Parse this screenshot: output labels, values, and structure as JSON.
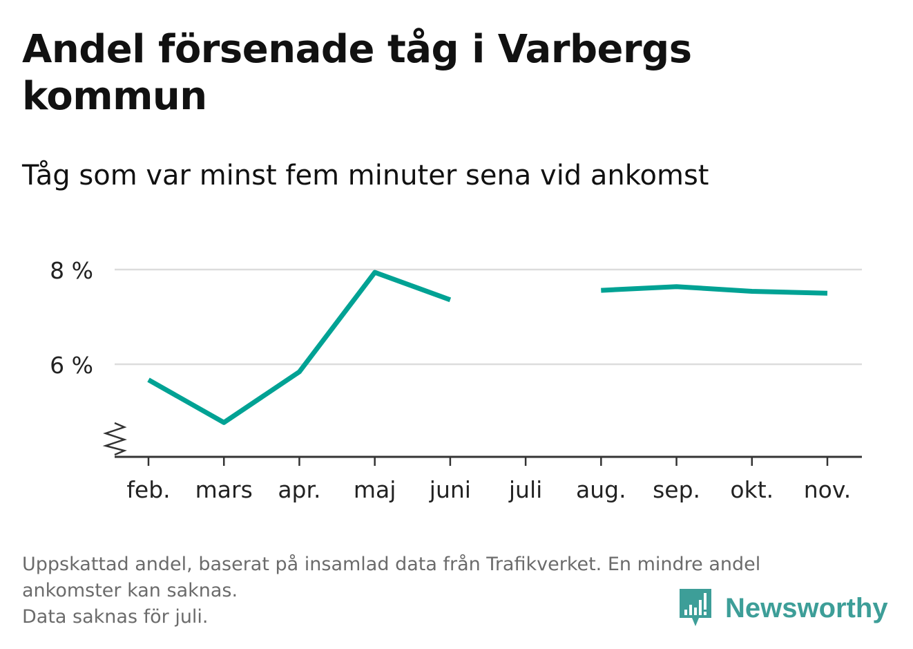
{
  "header": {
    "title": "Andel försenade tåg i Varbergs kommun",
    "subtitle": "Tåg som var minst fem minuter sena vid ankomst"
  },
  "footer": {
    "note_line1": "Uppskattad andel, baserat på insamlad data från Trafikverket. En mindre andel",
    "note_line2": "ankomster kan saknas.",
    "note_line3": "Data saknas för juli."
  },
  "logo": {
    "text": "Newsworthy",
    "icon": "bar-chart-speech-bubble-icon",
    "color": "#3d9e98"
  },
  "chart_data": {
    "type": "line",
    "categories": [
      "feb.",
      "mars",
      "apr.",
      "maj",
      "juni",
      "juli",
      "aug.",
      "sep.",
      "okt.",
      "nov."
    ],
    "series": [
      {
        "values": [
          5.67,
          4.77,
          5.84,
          7.94,
          7.36,
          null,
          7.56,
          7.64,
          7.54,
          7.5
        ],
        "color": "#00a294"
      }
    ],
    "y_ticks": [
      6,
      8
    ],
    "y_tick_labels": [
      "6 %",
      "8 %"
    ],
    "ylim": [
      4.0,
      8.4
    ],
    "axis_break": true,
    "grid": true,
    "xlabel": "",
    "ylabel": ""
  }
}
